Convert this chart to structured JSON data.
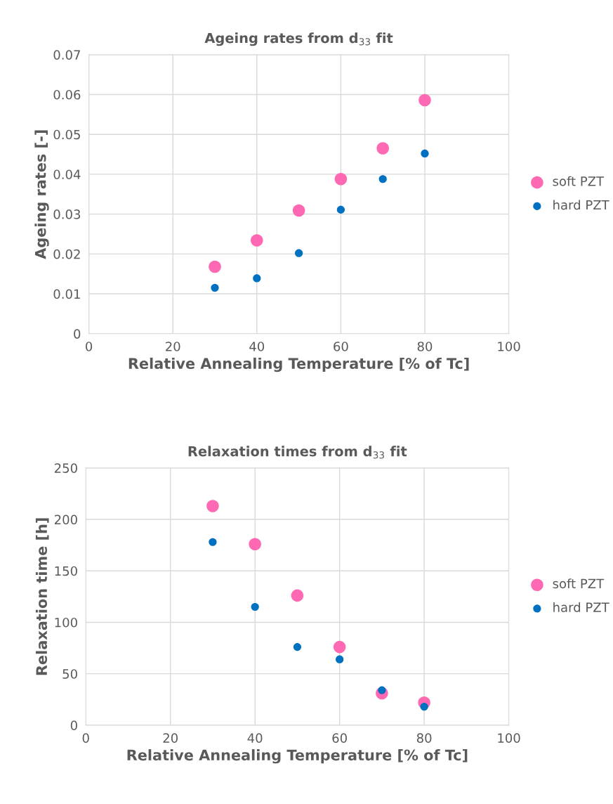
{
  "chart_data": [
    {
      "type": "scatter",
      "title": "Ageing rates from d$_{33}$ fit",
      "xlabel": "Relative Annealing Temperature [% of Tc]",
      "ylabel": "Ageing rates [-]",
      "x": [
        30,
        40,
        50,
        60,
        70,
        80
      ],
      "series": [
        {
          "name": "soft PZT",
          "color": "#ff69b4",
          "values": [
            0.0168,
            0.0234,
            0.0309,
            0.0388,
            0.0465,
            0.0586
          ]
        },
        {
          "name": "hard PZT",
          "color": "#0070c0",
          "values": [
            0.0115,
            0.0139,
            0.0202,
            0.0311,
            0.0388,
            0.0452
          ]
        }
      ],
      "xlim": [
        0,
        100
      ],
      "xticks": [
        0,
        20,
        40,
        60,
        80,
        100
      ],
      "ylim": [
        0,
        0.07
      ],
      "yticks": [
        {
          "value": 0,
          "label": "0"
        },
        {
          "value": 0.01,
          "label": "0.01"
        },
        {
          "value": 0.02,
          "label": "0.02"
        },
        {
          "value": 0.03,
          "label": "0.03"
        },
        {
          "value": 0.04,
          "label": "0.04"
        },
        {
          "value": 0.05,
          "label": "0.05"
        },
        {
          "value": 0.06,
          "label": "0.06"
        },
        {
          "value": 0.07,
          "label": "0.07"
        }
      ],
      "grid": true,
      "legend": "right",
      "marker": "circle"
    },
    {
      "type": "scatter",
      "title": "Relaxation times from d$_{33}$ fit",
      "xlabel": "Relative Annealing Temperature [% of Tc]",
      "ylabel": "Relaxation time [h]",
      "x": [
        30,
        40,
        50,
        60,
        70,
        80
      ],
      "series": [
        {
          "name": "soft PZT",
          "color": "#ff69b4",
          "values": [
            213,
            176,
            126,
            76,
            31,
            22
          ]
        },
        {
          "name": "hard PZT",
          "color": "#0070c0",
          "values": [
            178,
            115,
            76,
            64,
            34,
            18
          ]
        }
      ],
      "xlim": [
        0,
        100
      ],
      "xticks": [
        0,
        20,
        40,
        60,
        80,
        100
      ],
      "ylim": [
        0,
        250
      ],
      "yticks": [
        0,
        50,
        100,
        150,
        200,
        250
      ],
      "grid": true,
      "legend": "right",
      "marker": "circle"
    }
  ]
}
